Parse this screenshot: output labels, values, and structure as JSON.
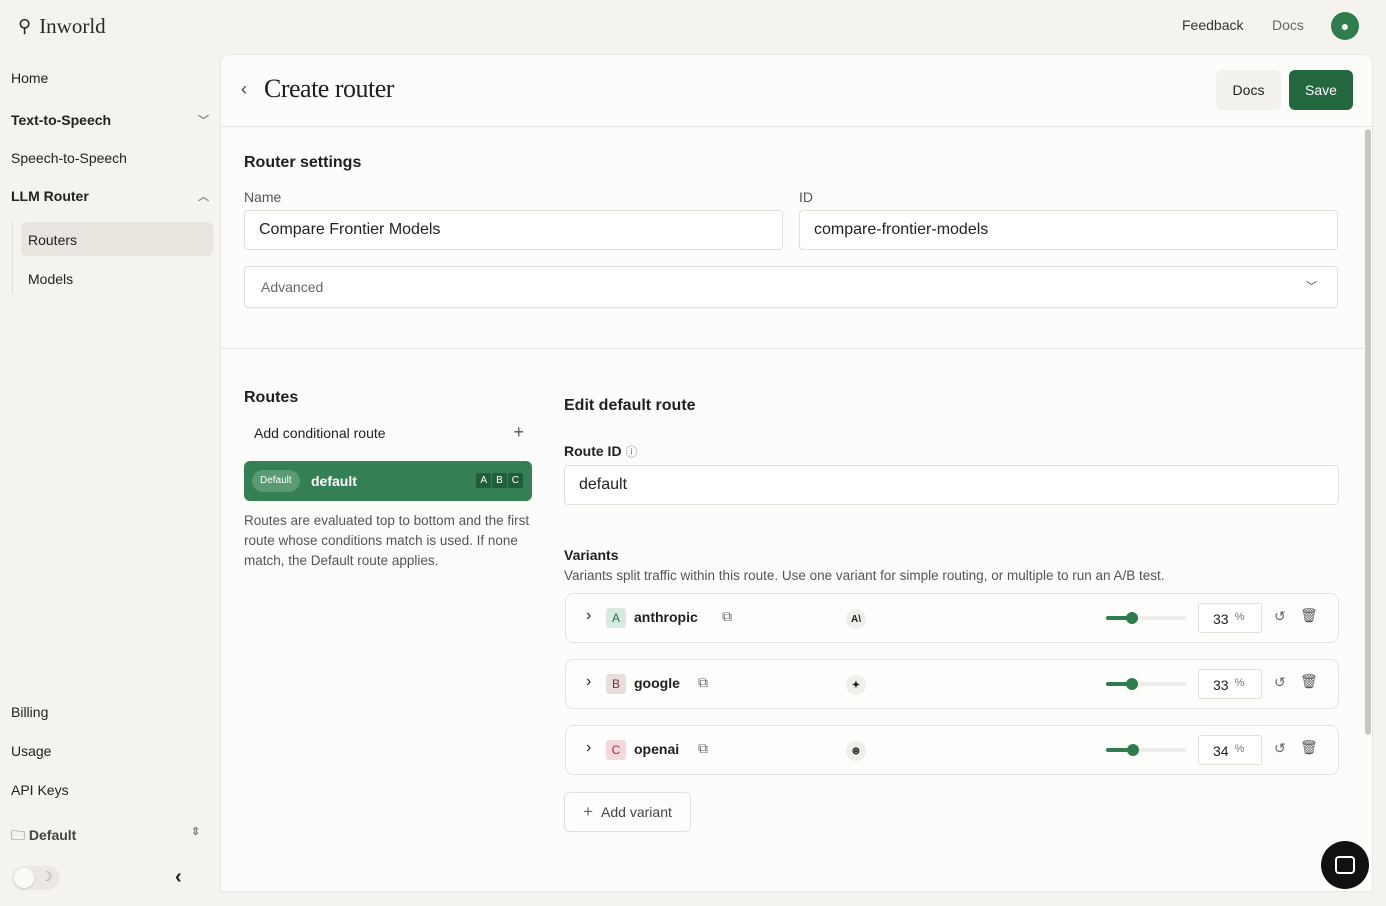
{
  "app": {
    "logo": "Inworld",
    "feedback": "Feedback",
    "docs": "Docs"
  },
  "sidebar": {
    "items": [
      {
        "label": "Home"
      },
      {
        "label": "Text-to-Speech"
      },
      {
        "label": "Speech-to-Speech"
      },
      {
        "label": "LLM Router"
      },
      {
        "label": "Routers"
      },
      {
        "label": "Models"
      },
      {
        "label": "Billing"
      },
      {
        "label": "Usage"
      },
      {
        "label": "API Keys"
      }
    ],
    "workspace": "Default"
  },
  "header": {
    "title": "Create router",
    "docs": "Docs",
    "save": "Save"
  },
  "settings": {
    "title": "Router settings",
    "name_label": "Name",
    "name_value": "Compare Frontier Models",
    "id_label": "ID",
    "id_value": "compare-frontier-models",
    "advanced": "Advanced"
  },
  "routes": {
    "title": "Routes",
    "add": "Add conditional route",
    "default_badge": "Default",
    "default_name": "default",
    "letters": [
      "A",
      "B",
      "C"
    ],
    "help": "Routes are evaluated top to bottom and the first route whose conditions match is used. If none match, the Default route applies."
  },
  "edit": {
    "title": "Edit default route",
    "route_id_label": "Route ID",
    "route_id_value": "default",
    "variants_title": "Variants",
    "variants_help": "Variants split traffic within this route. Use one variant for simple routing, or multiple to run an A/B test.",
    "add_variant": "Add variant",
    "variants": [
      {
        "letter": "A",
        "name": "anthropic",
        "provider_icon": "A\\",
        "percent": "33",
        "unit": "%",
        "letter_bg": "#d8ebe0",
        "letter_color": "#2f6b47"
      },
      {
        "letter": "B",
        "name": "google",
        "provider_icon": "✦",
        "percent": "33",
        "unit": "%",
        "letter_bg": "#e8dedc",
        "letter_color": "#6b3a33"
      },
      {
        "letter": "C",
        "name": "openai",
        "provider_icon": "⊛",
        "percent": "34",
        "unit": "%",
        "letter_bg": "#f3d9da",
        "letter_color": "#9b2f35"
      }
    ]
  },
  "colors": {
    "accent": "#2f7d4f"
  }
}
